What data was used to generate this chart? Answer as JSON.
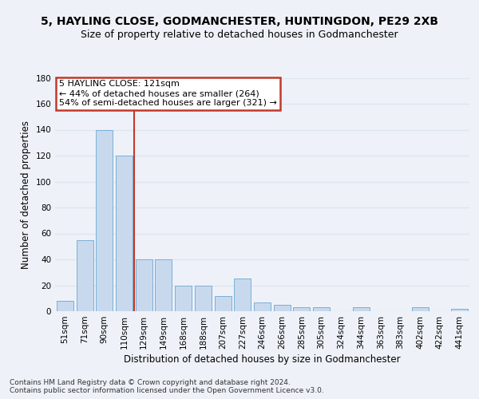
{
  "title1": "5, HAYLING CLOSE, GODMANCHESTER, HUNTINGDON, PE29 2XB",
  "title2": "Size of property relative to detached houses in Godmanchester",
  "xlabel": "Distribution of detached houses by size in Godmanchester",
  "ylabel": "Number of detached properties",
  "categories": [
    "51sqm",
    "71sqm",
    "90sqm",
    "110sqm",
    "129sqm",
    "149sqm",
    "168sqm",
    "188sqm",
    "207sqm",
    "227sqm",
    "246sqm",
    "266sqm",
    "285sqm",
    "305sqm",
    "324sqm",
    "344sqm",
    "363sqm",
    "383sqm",
    "402sqm",
    "422sqm",
    "441sqm"
  ],
  "values": [
    8,
    55,
    140,
    120,
    40,
    40,
    20,
    20,
    12,
    25,
    7,
    5,
    3,
    3,
    0,
    3,
    0,
    0,
    3,
    0,
    2
  ],
  "bar_color": "#c8d9ee",
  "bar_edge_color": "#7aafd4",
  "vline_x": 3.5,
  "vline_color": "#c0392b",
  "annotation_box_text": "5 HAYLING CLOSE: 121sqm\n← 44% of detached houses are smaller (264)\n54% of semi-detached houses are larger (321) →",
  "annotation_box_color": "#c0392b",
  "ylim": [
    0,
    180
  ],
  "yticks": [
    0,
    20,
    40,
    60,
    80,
    100,
    120,
    140,
    160,
    180
  ],
  "footer_text": "Contains HM Land Registry data © Crown copyright and database right 2024.\nContains public sector information licensed under the Open Government Licence v3.0.",
  "bg_color": "#eef2f8",
  "grid_color": "#dde5f0",
  "title_fontsize": 10,
  "subtitle_fontsize": 9,
  "label_fontsize": 8.5,
  "tick_fontsize": 7.5
}
